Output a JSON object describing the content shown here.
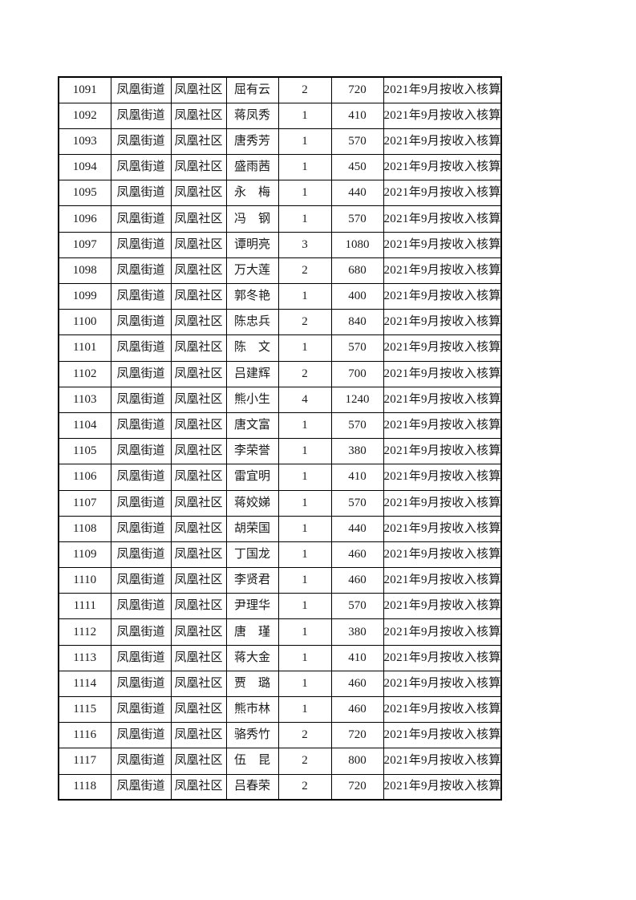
{
  "page": {
    "background_color": "#ffffff"
  },
  "colors": {
    "table_border": "#000000",
    "text": "#1a1a1a"
  },
  "table": {
    "field_order": [
      "id",
      "street",
      "community",
      "name",
      "count",
      "amount",
      "remark"
    ],
    "rows": [
      {
        "id": "1091",
        "street": "凤凰街道",
        "community": "凤凰社区",
        "name": "屈有云",
        "count": "2",
        "amount": "720",
        "remark": "2021年9月按收入核算"
      },
      {
        "id": "1092",
        "street": "凤凰街道",
        "community": "凤凰社区",
        "name": "蒋凤秀",
        "count": "1",
        "amount": "410",
        "remark": "2021年9月按收入核算"
      },
      {
        "id": "1093",
        "street": "凤凰街道",
        "community": "凤凰社区",
        "name": "唐秀芳",
        "count": "1",
        "amount": "570",
        "remark": "2021年9月按收入核算"
      },
      {
        "id": "1094",
        "street": "凤凰街道",
        "community": "凤凰社区",
        "name": "盛雨茜",
        "count": "1",
        "amount": "450",
        "remark": "2021年9月按收入核算"
      },
      {
        "id": "1095",
        "street": "凤凰街道",
        "community": "凤凰社区",
        "name": "永　梅",
        "count": "1",
        "amount": "440",
        "remark": "2021年9月按收入核算"
      },
      {
        "id": "1096",
        "street": "凤凰街道",
        "community": "凤凰社区",
        "name": "冯　钢",
        "count": "1",
        "amount": "570",
        "remark": "2021年9月按收入核算"
      },
      {
        "id": "1097",
        "street": "凤凰街道",
        "community": "凤凰社区",
        "name": "谭明亮",
        "count": "3",
        "amount": "1080",
        "remark": "2021年9月按收入核算"
      },
      {
        "id": "1098",
        "street": "凤凰街道",
        "community": "凤凰社区",
        "name": "万大莲",
        "count": "2",
        "amount": "680",
        "remark": "2021年9月按收入核算"
      },
      {
        "id": "1099",
        "street": "凤凰街道",
        "community": "凤凰社区",
        "name": "郭冬艳",
        "count": "1",
        "amount": "400",
        "remark": "2021年9月按收入核算"
      },
      {
        "id": "1100",
        "street": "凤凰街道",
        "community": "凤凰社区",
        "name": "陈忠兵",
        "count": "2",
        "amount": "840",
        "remark": "2021年9月按收入核算"
      },
      {
        "id": "1101",
        "street": "凤凰街道",
        "community": "凤凰社区",
        "name": "陈　文",
        "count": "1",
        "amount": "570",
        "remark": "2021年9月按收入核算"
      },
      {
        "id": "1102",
        "street": "凤凰街道",
        "community": "凤凰社区",
        "name": "吕建辉",
        "count": "2",
        "amount": "700",
        "remark": "2021年9月按收入核算"
      },
      {
        "id": "1103",
        "street": "凤凰街道",
        "community": "凤凰社区",
        "name": "熊小生",
        "count": "4",
        "amount": "1240",
        "remark": "2021年9月按收入核算"
      },
      {
        "id": "1104",
        "street": "凤凰街道",
        "community": "凤凰社区",
        "name": "唐文富",
        "count": "1",
        "amount": "570",
        "remark": "2021年9月按收入核算"
      },
      {
        "id": "1105",
        "street": "凤凰街道",
        "community": "凤凰社区",
        "name": "李荣誉",
        "count": "1",
        "amount": "380",
        "remark": "2021年9月按收入核算"
      },
      {
        "id": "1106",
        "street": "凤凰街道",
        "community": "凤凰社区",
        "name": "雷宜明",
        "count": "1",
        "amount": "410",
        "remark": "2021年9月按收入核算"
      },
      {
        "id": "1107",
        "street": "凤凰街道",
        "community": "凤凰社区",
        "name": "蒋姣娣",
        "count": "1",
        "amount": "570",
        "remark": "2021年9月按收入核算"
      },
      {
        "id": "1108",
        "street": "凤凰街道",
        "community": "凤凰社区",
        "name": "胡荣国",
        "count": "1",
        "amount": "440",
        "remark": "2021年9月按收入核算"
      },
      {
        "id": "1109",
        "street": "凤凰街道",
        "community": "凤凰社区",
        "name": "丁国龙",
        "count": "1",
        "amount": "460",
        "remark": "2021年9月按收入核算"
      },
      {
        "id": "1110",
        "street": "凤凰街道",
        "community": "凤凰社区",
        "name": "李贤君",
        "count": "1",
        "amount": "460",
        "remark": "2021年9月按收入核算"
      },
      {
        "id": "1111",
        "street": "凤凰街道",
        "community": "凤凰社区",
        "name": "尹理华",
        "count": "1",
        "amount": "570",
        "remark": "2021年9月按收入核算"
      },
      {
        "id": "1112",
        "street": "凤凰街道",
        "community": "凤凰社区",
        "name": "唐　瑾",
        "count": "1",
        "amount": "380",
        "remark": "2021年9月按收入核算"
      },
      {
        "id": "1113",
        "street": "凤凰街道",
        "community": "凤凰社区",
        "name": "蒋大金",
        "count": "1",
        "amount": "410",
        "remark": "2021年9月按收入核算"
      },
      {
        "id": "1114",
        "street": "凤凰街道",
        "community": "凤凰社区",
        "name": "贾　璐",
        "count": "1",
        "amount": "460",
        "remark": "2021年9月按收入核算"
      },
      {
        "id": "1115",
        "street": "凤凰街道",
        "community": "凤凰社区",
        "name": "熊市林",
        "count": "1",
        "amount": "460",
        "remark": "2021年9月按收入核算"
      },
      {
        "id": "1116",
        "street": "凤凰街道",
        "community": "凤凰社区",
        "name": "骆秀竹",
        "count": "2",
        "amount": "720",
        "remark": "2021年9月按收入核算"
      },
      {
        "id": "1117",
        "street": "凤凰街道",
        "community": "凤凰社区",
        "name": "伍　昆",
        "count": "2",
        "amount": "800",
        "remark": "2021年9月按收入核算"
      },
      {
        "id": "1118",
        "street": "凤凰街道",
        "community": "凤凰社区",
        "name": "吕春荣",
        "count": "2",
        "amount": "720",
        "remark": "2021年9月按收入核算"
      }
    ]
  }
}
